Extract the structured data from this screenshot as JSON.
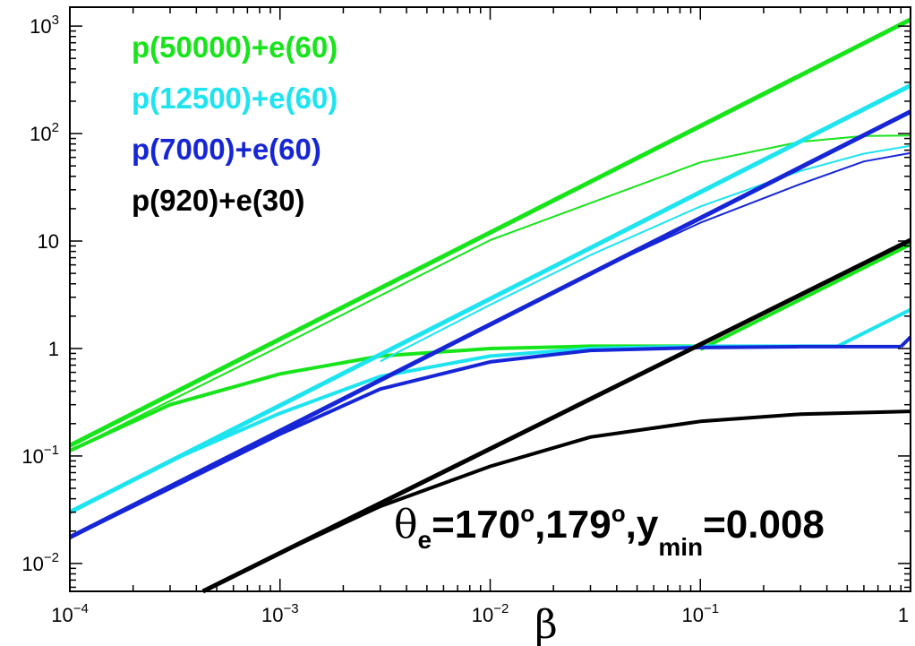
{
  "chart_data": {
    "type": "line",
    "title": "",
    "xlabel": "β",
    "ylabel": "",
    "x_scale": "log",
    "y_scale": "log",
    "xlim": [
      0.0001,
      1
    ],
    "ylim": [
      0.0055,
      1500
    ],
    "grid": false,
    "legend_placement": "top-left",
    "x_ticks": [
      {
        "value": 0.0001,
        "base": "10",
        "exp": "−4"
      },
      {
        "value": 0.001,
        "base": "10",
        "exp": "−3"
      },
      {
        "value": 0.01,
        "base": "10",
        "exp": "−2"
      },
      {
        "value": 0.1,
        "base": "10",
        "exp": "−1"
      },
      {
        "value": 1,
        "base": "1",
        "exp": ""
      }
    ],
    "y_ticks": [
      {
        "value": 0.01,
        "base": "10",
        "exp": "−2"
      },
      {
        "value": 0.1,
        "base": "10",
        "exp": "−1"
      },
      {
        "value": 1,
        "base": "1",
        "exp": ""
      },
      {
        "value": 10,
        "base": "10",
        "exp": ""
      },
      {
        "value": 100,
        "base": "10",
        "exp": "2"
      },
      {
        "value": 1000,
        "base": "10",
        "exp": "3"
      }
    ],
    "legend": [
      {
        "label": "p(50000)+e(60)",
        "color": "#17e41a"
      },
      {
        "label": "p(12500)+e(60)",
        "color": "#1ee4f0"
      },
      {
        "label": "p(7000)+e(60)",
        "color": "#1626d6"
      },
      {
        "label": "p(920)+e(30)",
        "color": "#000000"
      }
    ],
    "annotation": {
      "theta": "θ",
      "theta_sub": "e",
      "text1": "=170",
      "deg": "o",
      "text2": ",179",
      "text3": ",y",
      "ymin_sub": "min",
      "text4": "=0.008"
    },
    "series": [
      {
        "name": "p(50000)+e(60)",
        "color": "#17e41a",
        "width": 5,
        "x": [
          0.0001,
          1
        ],
        "y": [
          0.125,
          1150
        ]
      },
      {
        "name": "p(50000)+e(60)",
        "color": "#17e41a",
        "width": 2,
        "x": [
          0.0001,
          0.001,
          0.01,
          0.1,
          0.3,
          0.6,
          1
        ],
        "y": [
          0.112,
          1.05,
          10.2,
          54,
          84,
          95,
          96
        ]
      },
      {
        "name": "p(50000)+e(60)",
        "color": "#17e41a",
        "width": 4,
        "x": [
          0.0001,
          0.0003,
          0.001,
          0.003,
          0.01,
          0.03,
          0.1
        ],
        "y": [
          0.112,
          0.3,
          0.58,
          0.85,
          1.0,
          1.05,
          1.05
        ]
      },
      {
        "name": "p(50000)+e(60)",
        "color": "#17e41a",
        "width": 4,
        "x": [
          0.1,
          1
        ],
        "y": [
          0.98,
          9.3
        ]
      },
      {
        "name": "p(12500)+e(60)",
        "color": "#1ee4f0",
        "width": 5,
        "x": [
          0.0001,
          1
        ],
        "y": [
          0.03,
          280
        ]
      },
      {
        "name": "p(12500)+e(60)",
        "color": "#1ee4f0",
        "width": 2,
        "x": [
          0.003,
          0.01,
          0.03,
          0.1,
          0.3,
          0.6,
          1
        ],
        "y": [
          0.76,
          2.55,
          7.4,
          21,
          45,
          65,
          77
        ]
      },
      {
        "name": "p(12500)+e(60)",
        "color": "#1ee4f0",
        "width": 4,
        "x": [
          0.0001,
          0.0003,
          0.001,
          0.003,
          0.01,
          0.03,
          0.1,
          0.45
        ],
        "y": [
          0.03,
          0.09,
          0.25,
          0.55,
          0.85,
          1.0,
          1.05,
          1.05
        ]
      },
      {
        "name": "p(12500)+e(60)",
        "color": "#1ee4f0",
        "width": 4,
        "x": [
          0.45,
          1
        ],
        "y": [
          1.05,
          2.3
        ]
      },
      {
        "name": "p(7000)+e(60)",
        "color": "#1626d6",
        "width": 5,
        "x": [
          0.0001,
          1
        ],
        "y": [
          0.0175,
          160
        ]
      },
      {
        "name": "p(7000)+e(60)",
        "color": "#1626d6",
        "width": 2,
        "x": [
          0.01,
          0.03,
          0.1,
          0.3,
          0.6,
          1
        ],
        "y": [
          1.68,
          5.0,
          14.8,
          34,
          55,
          66
        ]
      },
      {
        "name": "p(7000)+e(60)",
        "color": "#1626d6",
        "width": 4,
        "x": [
          0.0001,
          0.0003,
          0.001,
          0.003,
          0.01,
          0.03,
          0.1,
          0.3,
          0.9
        ],
        "y": [
          0.0175,
          0.05,
          0.16,
          0.42,
          0.75,
          0.96,
          1.02,
          1.04,
          1.04
        ]
      },
      {
        "name": "p(7000)+e(60)",
        "color": "#1626d6",
        "width": 4,
        "x": [
          0.9,
          1
        ],
        "y": [
          1.04,
          1.28
        ]
      },
      {
        "name": "p(920)+e(30)",
        "color": "#000000",
        "width": 5,
        "x": [
          0.00043,
          1
        ],
        "y": [
          0.0055,
          10.2
        ]
      },
      {
        "name": "p(920)+e(30)",
        "color": "#000000",
        "width": 4,
        "x": [
          0.00043,
          0.001,
          0.003,
          0.01,
          0.03,
          0.1,
          0.3,
          1
        ],
        "y": [
          0.0055,
          0.0125,
          0.034,
          0.08,
          0.15,
          0.21,
          0.245,
          0.26
        ]
      }
    ]
  }
}
